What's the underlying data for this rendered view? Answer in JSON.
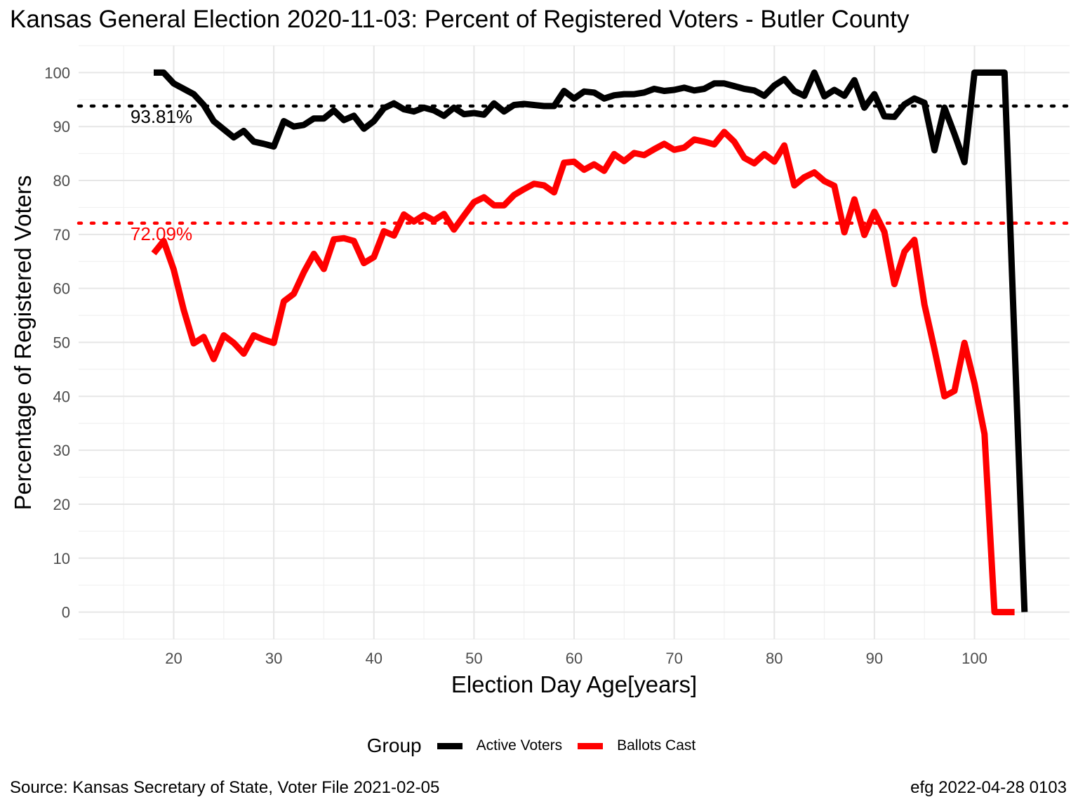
{
  "chart_data": {
    "type": "line",
    "title": "Kansas General Election 2020-11-03:  Percent of Registered Voters - Butler County",
    "xlabel": "Election Day Age[years]",
    "ylabel": "Percentage of Registered Voters",
    "xlim": [
      10.5,
      109.5
    ],
    "ylim": [
      -5,
      105
    ],
    "x_ticks": [
      20,
      30,
      40,
      50,
      60,
      70,
      80,
      90,
      100
    ],
    "y_ticks": [
      0,
      10,
      20,
      30,
      40,
      50,
      60,
      70,
      80,
      90,
      100
    ],
    "grid": true,
    "legend": {
      "title": "Group",
      "position": "bottom",
      "entries": [
        {
          "label": "Active Voters",
          "color": "#000000"
        },
        {
          "label": "Ballots Cast",
          "color": "#ff0000"
        }
      ]
    },
    "reference_lines": [
      {
        "label": "93.81%",
        "value": 93.81,
        "color": "#000000"
      },
      {
        "label": "72.09%",
        "value": 72.09,
        "color": "#ff0000"
      }
    ],
    "series": [
      {
        "name": "Active Voters",
        "color": "#000000",
        "x": [
          18,
          19,
          20,
          21,
          22,
          23,
          24,
          25,
          26,
          27,
          28,
          29,
          30,
          31,
          32,
          33,
          34,
          35,
          36,
          37,
          38,
          39,
          40,
          41,
          42,
          43,
          44,
          45,
          46,
          47,
          48,
          49,
          50,
          51,
          52,
          53,
          54,
          55,
          56,
          57,
          58,
          59,
          60,
          61,
          62,
          63,
          64,
          65,
          66,
          67,
          68,
          69,
          70,
          71,
          72,
          73,
          74,
          75,
          76,
          77,
          78,
          79,
          80,
          81,
          82,
          83,
          84,
          85,
          86,
          87,
          88,
          89,
          90,
          91,
          92,
          93,
          94,
          95,
          96,
          97,
          98,
          99,
          100,
          101,
          102,
          103,
          104,
          105
        ],
        "values": [
          100,
          100,
          98,
          97,
          96,
          94,
          91,
          89.5,
          88,
          89.2,
          87.2,
          86.8,
          86.3,
          91,
          90,
          90.3,
          91.5,
          91.5,
          93,
          91.2,
          92,
          89.6,
          91,
          93.4,
          94.3,
          93.2,
          92.8,
          93.5,
          93,
          92,
          93.5,
          92.3,
          92.5,
          92.2,
          94.3,
          92.8,
          94,
          94.2,
          94,
          93.8,
          93.8,
          96.6,
          95.2,
          96.5,
          96.3,
          95.2,
          95.8,
          96,
          96,
          96.3,
          97,
          96.6,
          96.8,
          97.2,
          96.7,
          97,
          98,
          98,
          97.5,
          97,
          96.7,
          95.7,
          97.6,
          98.8,
          96.6,
          95.7,
          100,
          95.6,
          96.8,
          95.7,
          98.6,
          93.5,
          96,
          91.9,
          91.8,
          94.1,
          95.2,
          94.4,
          85.6,
          93.5,
          88.6,
          83.4,
          100,
          100,
          100,
          100,
          50,
          0
        ]
      },
      {
        "name": "Ballots Cast",
        "color": "#ff0000",
        "x": [
          18,
          19,
          20,
          21,
          22,
          23,
          24,
          25,
          26,
          27,
          28,
          29,
          30,
          31,
          32,
          33,
          34,
          35,
          36,
          37,
          38,
          39,
          40,
          41,
          42,
          43,
          44,
          45,
          46,
          47,
          48,
          49,
          50,
          51,
          52,
          53,
          54,
          55,
          56,
          57,
          58,
          59,
          60,
          61,
          62,
          63,
          64,
          65,
          66,
          67,
          68,
          69,
          70,
          71,
          72,
          73,
          74,
          75,
          76,
          77,
          78,
          79,
          80,
          81,
          82,
          83,
          84,
          85,
          86,
          87,
          88,
          89,
          90,
          91,
          92,
          93,
          94,
          95,
          96,
          97,
          98,
          99,
          100,
          101,
          102,
          103,
          104
        ],
        "values": [
          66.5,
          68.8,
          63.5,
          56,
          49.8,
          51,
          46.9,
          51.3,
          49.9,
          47.9,
          51.3,
          50.5,
          49.9,
          57.6,
          59,
          63,
          66.4,
          63.6,
          69.1,
          69.3,
          68.8,
          64.7,
          65.8,
          70.6,
          69.8,
          73.7,
          72.4,
          73.6,
          72.6,
          73.8,
          70.9,
          73.5,
          76,
          76.9,
          75.4,
          75.4,
          77.3,
          78.4,
          79.4,
          79.1,
          77.8,
          83.3,
          83.5,
          82,
          83,
          81.8,
          84.9,
          83.6,
          85.1,
          84.7,
          85.8,
          86.8,
          85.7,
          86.1,
          87.6,
          87.2,
          86.7,
          89,
          87.2,
          84.2,
          83.2,
          84.9,
          83.5,
          86.5,
          79.1,
          80.6,
          81.5,
          79.9,
          79,
          70.4,
          76.5,
          69.9,
          74.2,
          70.5,
          60.8,
          66.8,
          69,
          57,
          48.7,
          40,
          41,
          49.9,
          42.4,
          33,
          0,
          0,
          0
        ]
      }
    ]
  },
  "footer": {
    "source": "Source:  Kansas Secretary of State, Voter File  2021-02-05",
    "credit": "efg 2022-04-28 0103"
  }
}
